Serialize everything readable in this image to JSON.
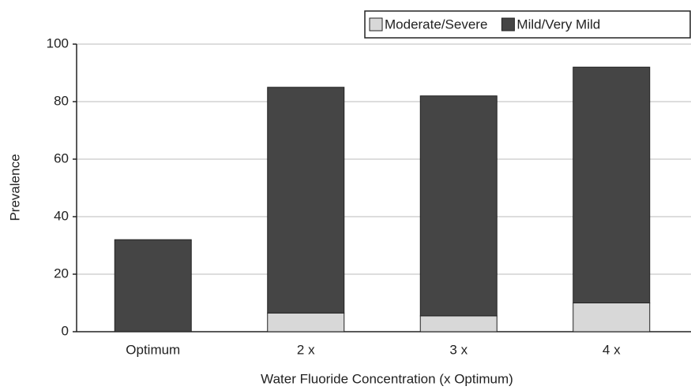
{
  "chart_data": {
    "type": "bar",
    "stacked": true,
    "xlabel": "Water Fluoride Concentration (x Optimum)",
    "ylabel": "Prevalence",
    "categories": [
      "Optimum",
      "2 x",
      "3 x",
      "4 x"
    ],
    "series": [
      {
        "name": "Moderate/Severe",
        "color": "#d8d8d8",
        "values": [
          0,
          6.5,
          5.5,
          10
        ]
      },
      {
        "name": "Mild/Very Mild",
        "color": "#454545",
        "values": [
          32,
          78.5,
          76.5,
          82
        ]
      }
    ],
    "ylim": [
      0,
      100
    ],
    "yticks": [
      0,
      20,
      40,
      60,
      80,
      100
    ],
    "grid": true,
    "legend": "top-right"
  }
}
